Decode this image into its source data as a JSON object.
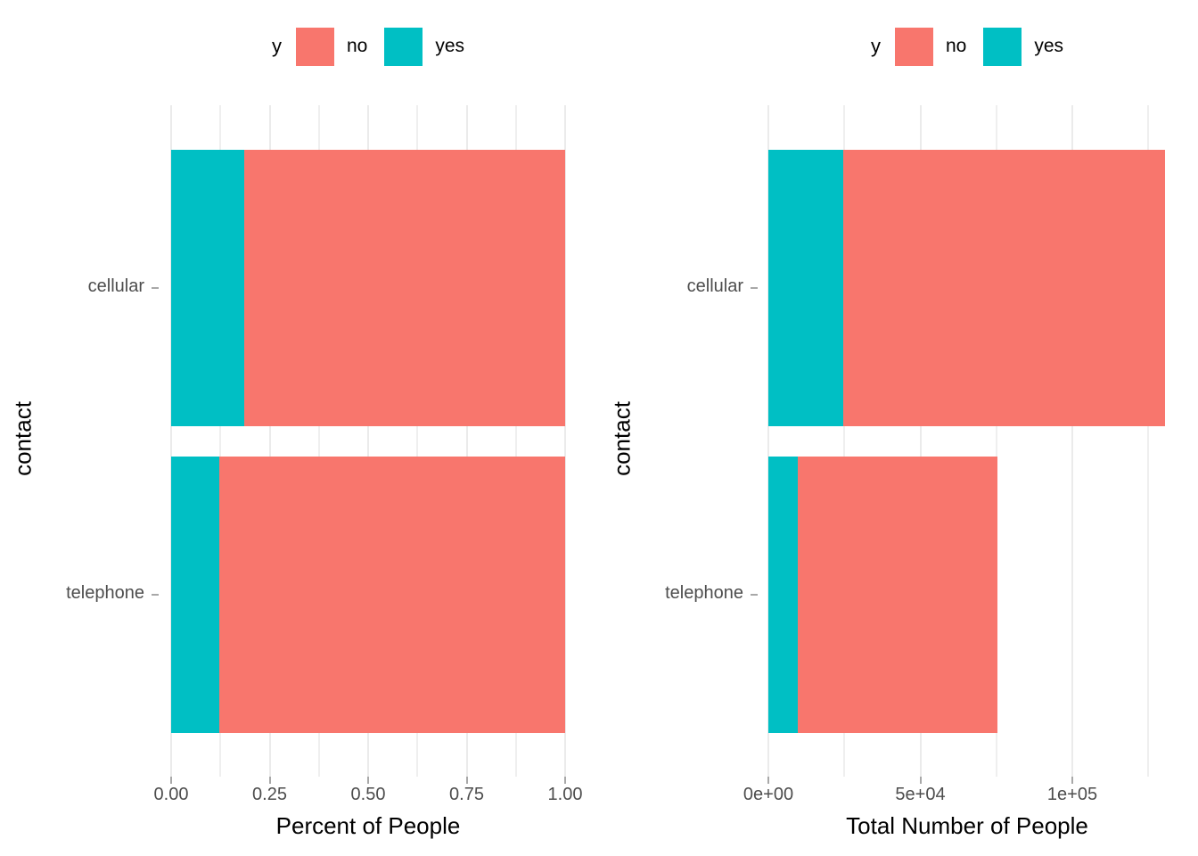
{
  "figure": {
    "background": "#ffffff",
    "palette": {
      "no": "#F8766D",
      "yes": "#00BFC4"
    },
    "grid_color": "#ebebeb",
    "axis_text_color": "#4d4d4d"
  },
  "chart_data": [
    {
      "type": "bar",
      "orientation": "horizontal",
      "stacking": "fill",
      "title": "",
      "xlabel": "Percent of People",
      "ylabel": "contact",
      "categories": [
        "cellular",
        "telephone"
      ],
      "series": [
        {
          "name": "yes",
          "color": "#00BFC4",
          "values": [
            0.186,
            0.122
          ]
        },
        {
          "name": "no",
          "color": "#F8766D",
          "values": [
            0.814,
            0.878
          ]
        }
      ],
      "axis_max": 1.0,
      "xlim": [
        0,
        1.0
      ],
      "major_ticks": [
        {
          "value": 0.0,
          "label": "0.00"
        },
        {
          "value": 0.25,
          "label": "0.25"
        },
        {
          "value": 0.5,
          "label": "0.50"
        },
        {
          "value": 0.75,
          "label": "0.75"
        },
        {
          "value": 1.0,
          "label": "1.00"
        }
      ],
      "minor_ticks": [
        0.125,
        0.375,
        0.625,
        0.875
      ],
      "grid": true,
      "legend_position": "top",
      "legend": {
        "title": "y",
        "items": [
          {
            "label": "no",
            "color": "#F8766D"
          },
          {
            "label": "yes",
            "color": "#00BFC4"
          }
        ]
      }
    },
    {
      "type": "bar",
      "orientation": "horizontal",
      "stacking": "stack",
      "title": "",
      "xlabel": "Total Number of People",
      "ylabel": "contact",
      "categories": [
        "cellular",
        "telephone"
      ],
      "series": [
        {
          "name": "yes",
          "color": "#00BFC4",
          "values": [
            24500,
            9700
          ]
        },
        {
          "name": "no",
          "color": "#F8766D",
          "values": [
            106000,
            65700
          ]
        }
      ],
      "axis_max": 100000,
      "xlim": [
        0,
        137000
      ],
      "major_ticks": [
        {
          "value": 0,
          "label": "0e+00"
        },
        {
          "value": 50000,
          "label": "5e+04"
        },
        {
          "value": 100000,
          "label": "1e+05"
        }
      ],
      "minor_ticks": [
        25000,
        75000,
        125000
      ],
      "grid": true,
      "legend_position": "top",
      "legend": {
        "title": "y",
        "items": [
          {
            "label": "no",
            "color": "#F8766D"
          },
          {
            "label": "yes",
            "color": "#00BFC4"
          }
        ]
      }
    }
  ]
}
